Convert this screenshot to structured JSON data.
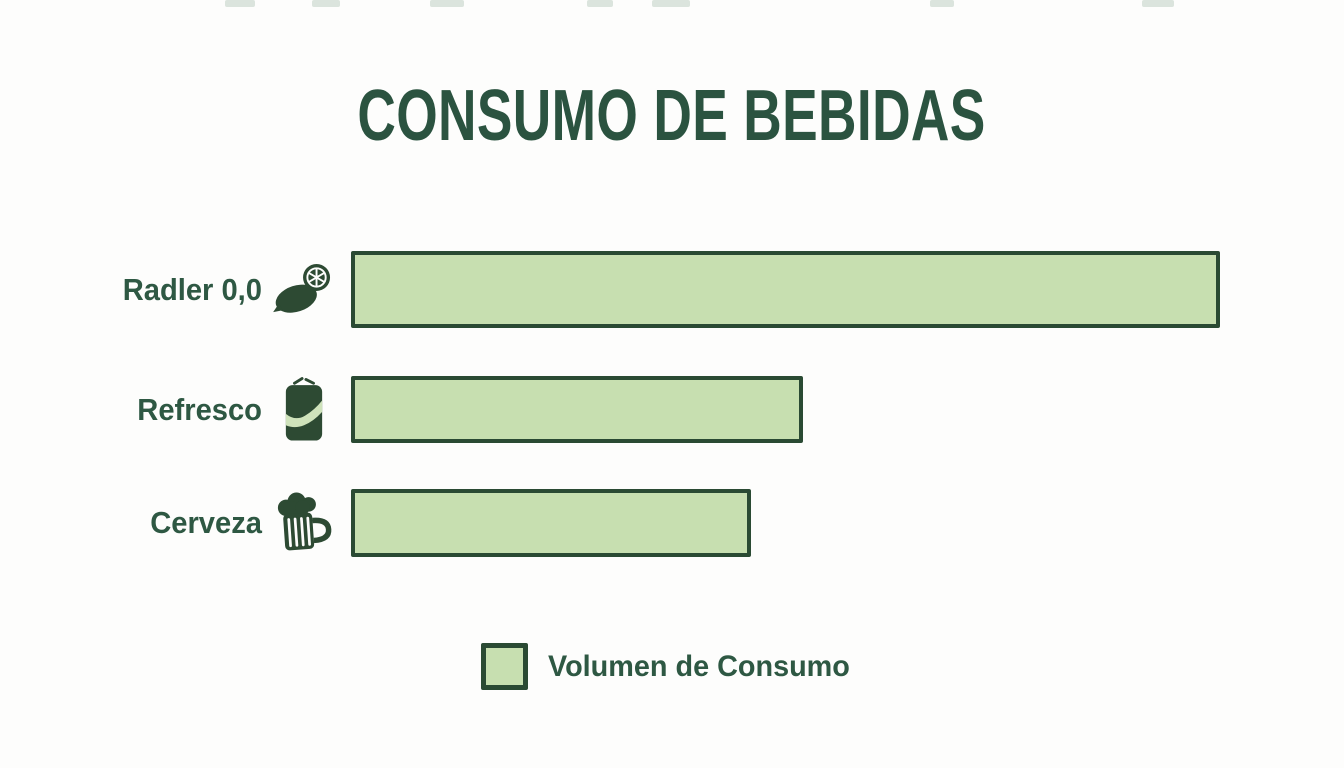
{
  "title": "CONSUMO DE BEBIDAS",
  "chart_data": {
    "type": "bar",
    "orientation": "horizontal",
    "title": "CONSUMO DE BEBIDAS",
    "categories": [
      "Radler 0,0",
      "Refresco",
      "Cerveza"
    ],
    "values": [
      100,
      52,
      46
    ],
    "value_scale": "relative units; no numeric axis, ticks or data labels are shown in the image",
    "xlabel": "",
    "ylabel": "",
    "grid": false,
    "legend_position": "bottom-center",
    "legend_entries": [
      "Volumen de Consumo"
    ],
    "icons": [
      "lemon-icon",
      "soda-can-icon",
      "beer-mug-icon"
    ]
  },
  "legend": {
    "label": "Volumen de Consumo"
  },
  "colors": {
    "bar_fill": "#c7dfb0",
    "bar_border": "#2a4a33",
    "title_text": "#2b5340",
    "label_text": "#2e5843",
    "icon": "#2d4a33",
    "background": "#fdfdfc"
  }
}
